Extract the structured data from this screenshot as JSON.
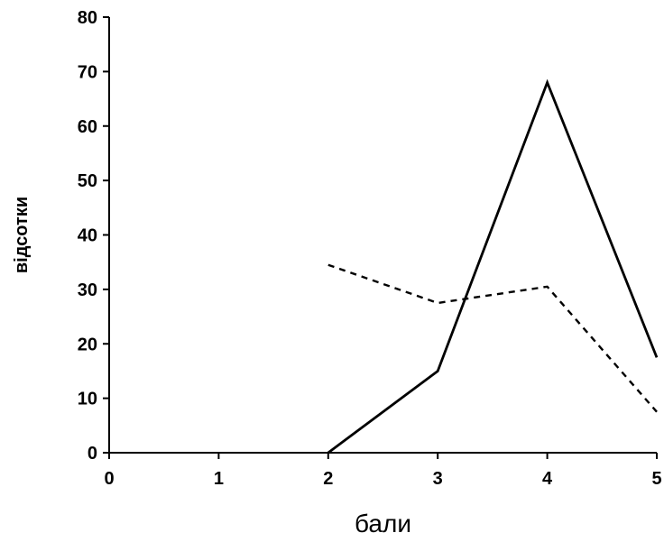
{
  "chart_data": {
    "type": "line",
    "xlabel": "бали",
    "ylabel": "відсотки",
    "xlim": [
      0,
      5
    ],
    "ylim": [
      0,
      80
    ],
    "x_ticks": [
      "0",
      "1",
      "2",
      "3",
      "4",
      "5"
    ],
    "y_ticks": [
      "0",
      "10",
      "20",
      "30",
      "40",
      "50",
      "60",
      "70",
      "80"
    ],
    "grid": false,
    "legend": "none",
    "series": [
      {
        "style": "solid",
        "color": "#000000",
        "x": [
          2,
          3,
          4,
          5
        ],
        "y": [
          0,
          15,
          68,
          17.5
        ]
      },
      {
        "style": "dashed",
        "color": "#000000",
        "x": [
          2,
          3,
          4,
          5
        ],
        "y": [
          34.5,
          27.5,
          30.5,
          7.5
        ]
      }
    ]
  }
}
